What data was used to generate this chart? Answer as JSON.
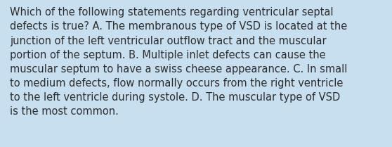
{
  "background_color": "#c8dff0",
  "text_color": "#2d2d2d",
  "font_size": 10.5,
  "lines": [
    "Which of the following statements regarding ventricular septal",
    "defects is true? A. The membranous type of VSD is located at the",
    "junction of the left ventricular outflow tract and the muscular",
    "portion of the septum. B. Multiple inlet defects can cause the",
    "muscular septum to have a swiss cheese appearance. C. In small",
    "to medium defects, flow normally occurs from the right ventricle",
    "to the left ventricle during systole. D. The muscular type of VSD",
    "is the most common."
  ],
  "figwidth": 5.58,
  "figheight": 2.09,
  "dpi": 100
}
